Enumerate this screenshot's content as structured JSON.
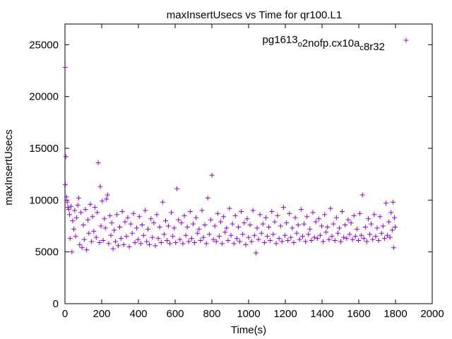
{
  "chart_data": {
    "type": "scatter",
    "title": "maxInsertUsecs vs Time for qr100.L1",
    "xlabel": "Time(s)",
    "ylabel": "maxInsertUsecs",
    "xlim": [
      0,
      2000
    ],
    "ylim": [
      0,
      27000
    ],
    "xticks": [
      "0",
      "200",
      "400",
      "600",
      "800",
      "1000",
      "1200",
      "1400",
      "1600",
      "1800",
      "2000"
    ],
    "yticks": [
      "0",
      "5000",
      "10000",
      "15000",
      "20000",
      "25000"
    ],
    "grid": false,
    "legend_position": "top-right",
    "series": [
      {
        "name": "pg1613_o2nofp.cx10a_c8r32",
        "legend_parts": [
          {
            "text": "pg1613",
            "sub": false
          },
          {
            "text": "o",
            "sub": true
          },
          {
            "text": "2nofp.cx10a",
            "sub": false
          },
          {
            "text": "c",
            "sub": true
          },
          {
            "text": "8r32",
            "sub": false
          }
        ],
        "color": "#9400d3",
        "marker": "plus",
        "points": [
          [
            1,
            22800
          ],
          [
            2,
            11500
          ],
          [
            5,
            14200
          ],
          [
            8,
            10300
          ],
          [
            12,
            9800
          ],
          [
            16,
            9300
          ],
          [
            20,
            9100
          ],
          [
            25,
            8600
          ],
          [
            28,
            6300
          ],
          [
            33,
            9400
          ],
          [
            38,
            5000
          ],
          [
            42,
            8000
          ],
          [
            48,
            7200
          ],
          [
            53,
            9000
          ],
          [
            58,
            6500
          ],
          [
            63,
            8300
          ],
          [
            70,
            9500
          ],
          [
            75,
            10200
          ],
          [
            80,
            5700
          ],
          [
            87,
            8800
          ],
          [
            93,
            5400
          ],
          [
            100,
            7600
          ],
          [
            105,
            6200
          ],
          [
            112,
            9100
          ],
          [
            118,
            5200
          ],
          [
            125,
            8100
          ],
          [
            130,
            6800
          ],
          [
            138,
            9600
          ],
          [
            145,
            6000
          ],
          [
            150,
            8400
          ],
          [
            157,
            7000
          ],
          [
            163,
            9300
          ],
          [
            170,
            6400
          ],
          [
            176,
            8800
          ],
          [
            181,
            13600
          ],
          [
            188,
            5900
          ],
          [
            192,
            11300
          ],
          [
            196,
            7500
          ],
          [
            203,
            9900
          ],
          [
            208,
            6100
          ],
          [
            215,
            8200
          ],
          [
            220,
            7300
          ],
          [
            226,
            10100
          ],
          [
            232,
            10500
          ],
          [
            238,
            5800
          ],
          [
            245,
            8500
          ],
          [
            250,
            6600
          ],
          [
            255,
            7800
          ],
          [
            262,
            5300
          ],
          [
            268,
            7100
          ],
          [
            275,
            6000
          ],
          [
            283,
            8600
          ],
          [
            290,
            5600
          ],
          [
            298,
            7400
          ],
          [
            305,
            6300
          ],
          [
            312,
            8900
          ],
          [
            320,
            5700
          ],
          [
            327,
            7900
          ],
          [
            335,
            6500
          ],
          [
            342,
            8300
          ],
          [
            350,
            5500
          ],
          [
            358,
            7700
          ],
          [
            366,
            6800
          ],
          [
            373,
            8700
          ],
          [
            381,
            5900
          ],
          [
            390,
            7300
          ],
          [
            398,
            6200
          ],
          [
            405,
            8400
          ],
          [
            413,
            5800
          ],
          [
            420,
            7600
          ],
          [
            428,
            6600
          ],
          [
            437,
            9000
          ],
          [
            445,
            6000
          ],
          [
            452,
            7200
          ],
          [
            460,
            5700
          ],
          [
            468,
            8200
          ],
          [
            476,
            6400
          ],
          [
            484,
            7800
          ],
          [
            492,
            5600
          ],
          [
            500,
            8600
          ],
          [
            508,
            6300
          ],
          [
            516,
            7400
          ],
          [
            524,
            5900
          ],
          [
            532,
            9800
          ],
          [
            540,
            6700
          ],
          [
            548,
            8000
          ],
          [
            556,
            6100
          ],
          [
            563,
            7500
          ],
          [
            571,
            5800
          ],
          [
            579,
            8800
          ],
          [
            587,
            6500
          ],
          [
            595,
            7300
          ],
          [
            603,
            5900
          ],
          [
            610,
            11100
          ],
          [
            618,
            8100
          ],
          [
            626,
            6200
          ],
          [
            634,
            7800
          ],
          [
            642,
            5800
          ],
          [
            650,
            8500
          ],
          [
            658,
            6600
          ],
          [
            666,
            7400
          ],
          [
            674,
            6000
          ],
          [
            682,
            8900
          ],
          [
            690,
            6300
          ],
          [
            698,
            7700
          ],
          [
            706,
            5900
          ],
          [
            714,
            8300
          ],
          [
            722,
            6800
          ],
          [
            730,
            7200
          ],
          [
            738,
            6100
          ],
          [
            746,
            9000
          ],
          [
            754,
            6400
          ],
          [
            762,
            7600
          ],
          [
            770,
            5800
          ],
          [
            778,
            10200
          ],
          [
            786,
            6700
          ],
          [
            794,
            8100
          ],
          [
            800,
            12400
          ],
          [
            808,
            6200
          ],
          [
            816,
            7500
          ],
          [
            824,
            6000
          ],
          [
            832,
            8700
          ],
          [
            840,
            6500
          ],
          [
            848,
            7900
          ],
          [
            856,
            5800
          ],
          [
            864,
            8400
          ],
          [
            872,
            6900
          ],
          [
            880,
            7300
          ],
          [
            888,
            6100
          ],
          [
            896,
            9200
          ],
          [
            904,
            6600
          ],
          [
            912,
            7700
          ],
          [
            920,
            5800
          ],
          [
            928,
            8500
          ],
          [
            936,
            6300
          ],
          [
            944,
            7400
          ],
          [
            952,
            6000
          ],
          [
            960,
            8900
          ],
          [
            968,
            6700
          ],
          [
            976,
            7800
          ],
          [
            984,
            5700
          ],
          [
            992,
            8200
          ],
          [
            1000,
            6400
          ],
          [
            1008,
            7600
          ],
          [
            1016,
            6000
          ],
          [
            1024,
            9000
          ],
          [
            1032,
            6600
          ],
          [
            1040,
            4900
          ],
          [
            1046,
            7300
          ],
          [
            1054,
            6200
          ],
          [
            1062,
            8600
          ],
          [
            1070,
            6800
          ],
          [
            1078,
            7700
          ],
          [
            1086,
            5900
          ],
          [
            1094,
            8300
          ],
          [
            1102,
            6500
          ],
          [
            1110,
            7400
          ],
          [
            1118,
            6100
          ],
          [
            1126,
            8900
          ],
          [
            1134,
            6700
          ],
          [
            1142,
            7900
          ],
          [
            1150,
            5800
          ],
          [
            1158,
            8500
          ],
          [
            1166,
            6300
          ],
          [
            1174,
            7500
          ],
          [
            1182,
            6000
          ],
          [
            1190,
            9300
          ],
          [
            1198,
            6600
          ],
          [
            1206,
            7800
          ],
          [
            1214,
            6100
          ],
          [
            1222,
            8700
          ],
          [
            1230,
            6400
          ],
          [
            1238,
            7300
          ],
          [
            1246,
            5900
          ],
          [
            1254,
            8300
          ],
          [
            1262,
            6800
          ],
          [
            1270,
            7600
          ],
          [
            1278,
            6200
          ],
          [
            1286,
            9100
          ],
          [
            1294,
            6500
          ],
          [
            1302,
            7700
          ],
          [
            1310,
            6000
          ],
          [
            1318,
            8400
          ],
          [
            1326,
            6700
          ],
          [
            1334,
            7200
          ],
          [
            1342,
            6100
          ],
          [
            1350,
            8800
          ],
          [
            1358,
            6400
          ],
          [
            1366,
            7900
          ],
          [
            1374,
            6300
          ],
          [
            1382,
            8200
          ],
          [
            1390,
            6600
          ],
          [
            1398,
            7500
          ],
          [
            1406,
            6000
          ],
          [
            1414,
            8600
          ],
          [
            1422,
            6900
          ],
          [
            1430,
            7400
          ],
          [
            1438,
            6200
          ],
          [
            1446,
            9200
          ],
          [
            1454,
            6500
          ],
          [
            1462,
            7700
          ],
          [
            1470,
            6100
          ],
          [
            1478,
            8300
          ],
          [
            1486,
            6800
          ],
          [
            1494,
            7300
          ],
          [
            1502,
            6000
          ],
          [
            1510,
            8900
          ],
          [
            1518,
            6400
          ],
          [
            1526,
            7600
          ],
          [
            1534,
            6300
          ],
          [
            1542,
            8100
          ],
          [
            1550,
            6700
          ],
          [
            1558,
            7800
          ],
          [
            1566,
            6200
          ],
          [
            1574,
            8500
          ],
          [
            1582,
            6500
          ],
          [
            1590,
            7200
          ],
          [
            1598,
            6100
          ],
          [
            1606,
            8700
          ],
          [
            1614,
            6600
          ],
          [
            1620,
            10500
          ],
          [
            1628,
            6300
          ],
          [
            1636,
            7400
          ],
          [
            1644,
            6000
          ],
          [
            1652,
            8200
          ],
          [
            1660,
            6700
          ],
          [
            1668,
            7700
          ],
          [
            1676,
            6200
          ],
          [
            1684,
            8600
          ],
          [
            1692,
            6500
          ],
          [
            1700,
            7300
          ],
          [
            1708,
            6100
          ],
          [
            1716,
            8400
          ],
          [
            1724,
            6800
          ],
          [
            1732,
            7500
          ],
          [
            1740,
            6300
          ],
          [
            1748,
            9700
          ],
          [
            1756,
            6600
          ],
          [
            1764,
            7900
          ],
          [
            1770,
            6400
          ],
          [
            1776,
            8800
          ],
          [
            1782,
            7100
          ],
          [
            1786,
            9800
          ],
          [
            1790,
            5400
          ],
          [
            1794,
            8300
          ],
          [
            1798,
            7400
          ]
        ]
      }
    ]
  }
}
